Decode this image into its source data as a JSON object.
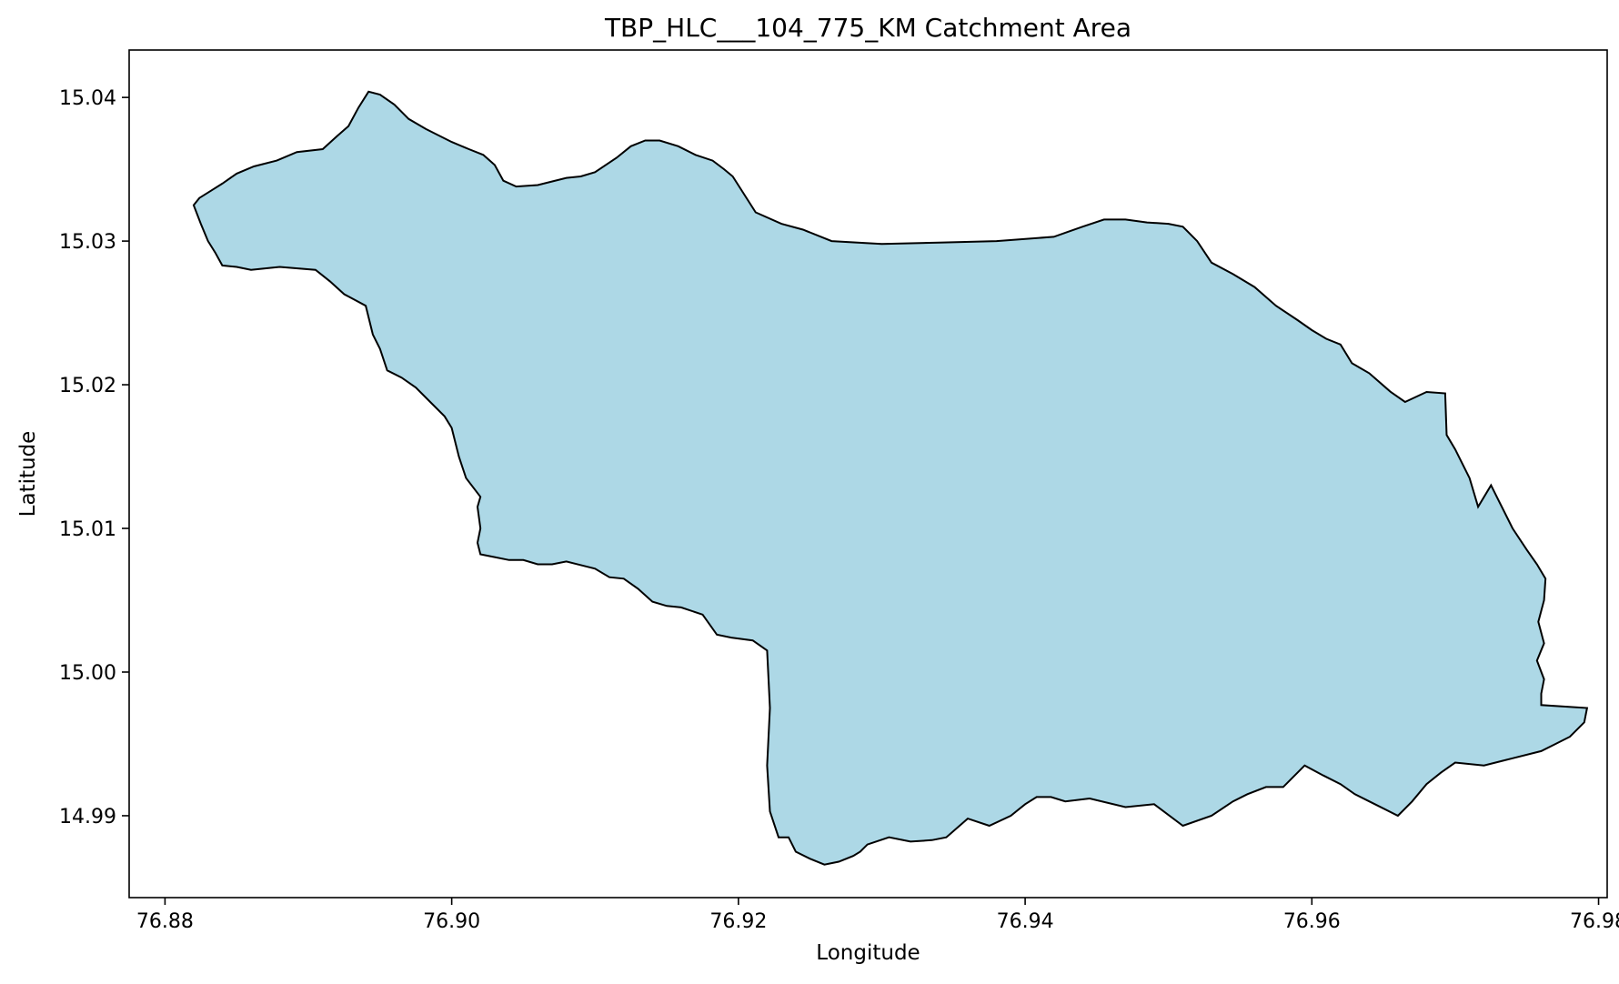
{
  "chart_data": {
    "type": "area",
    "title": "TBP_HLC___104_775_KM Catchment Area",
    "xlabel": "Longitude",
    "ylabel": "Latitude",
    "xlim": [
      76.8775,
      76.9806
    ],
    "ylim": [
      14.9843,
      15.0433
    ],
    "xticks": [
      76.88,
      76.9,
      76.92,
      76.94,
      76.96,
      76.98
    ],
    "xtick_labels": [
      "76.88",
      "76.90",
      "76.92",
      "76.94",
      "76.96",
      "76.98"
    ],
    "yticks": [
      14.99,
      15.0,
      15.01,
      15.02,
      15.03,
      15.04
    ],
    "ytick_labels": [
      "14.99",
      "15.00",
      "15.01",
      "15.02",
      "15.03",
      "15.04"
    ],
    "grid": false,
    "fill_color": "#add8e6",
    "edge_color": "#000000",
    "series": [
      {
        "x": [
          76.882,
          76.8824,
          76.8832,
          76.884,
          76.885,
          76.8862,
          76.8878,
          76.8892,
          76.891,
          76.892,
          76.8928,
          76.8935,
          76.8942,
          76.895,
          76.896,
          76.897,
          76.8982,
          76.9,
          76.9012,
          76.9022,
          76.903,
          76.9036,
          76.9045,
          76.906,
          76.908,
          76.909,
          76.91,
          76.9115,
          76.9125,
          76.9135,
          76.9145,
          76.9158,
          76.917,
          76.9182,
          76.919,
          76.9196,
          76.9212,
          76.923,
          76.9245,
          76.9265,
          76.93,
          76.934,
          76.938,
          76.942,
          76.944,
          76.9455,
          76.947,
          76.9485,
          76.95,
          76.951,
          76.952,
          76.953,
          76.9545,
          76.956,
          76.9575,
          76.959,
          76.96,
          76.961,
          76.962,
          76.9628,
          76.964,
          76.9655,
          76.9665,
          76.968,
          76.9693,
          76.9694,
          76.97,
          76.971,
          76.9716,
          76.9725,
          76.973,
          76.974,
          76.975,
          76.9757,
          76.9763,
          76.9762,
          76.9758,
          76.9762,
          76.9757,
          76.9762,
          76.976,
          76.976,
          76.9792,
          76.979,
          76.978,
          76.977,
          76.976,
          76.974,
          76.972,
          76.97,
          76.969,
          76.968,
          76.967,
          76.966,
          76.964,
          76.963,
          76.962,
          76.9608,
          76.9595,
          76.958,
          76.9568,
          76.9555,
          76.9545,
          76.953,
          76.951,
          76.949,
          76.947,
          76.9445,
          76.9428,
          76.9418,
          76.9408,
          76.94,
          76.939,
          76.9375,
          76.936,
          76.9345,
          76.9335,
          76.932,
          76.9305,
          76.929,
          76.9285,
          76.928,
          76.927,
          76.926,
          76.925,
          76.924,
          76.9235,
          76.9228,
          76.9222,
          76.922,
          76.9222,
          76.922,
          76.921,
          76.9195,
          76.9185,
          76.9175,
          76.916,
          76.915,
          76.914,
          76.913,
          76.912,
          76.911,
          76.91,
          76.908,
          76.907,
          76.906,
          76.905,
          76.904,
          76.903,
          76.902,
          76.9018,
          76.902,
          76.9018,
          76.902,
          76.901,
          76.9005,
          76.9,
          76.8995,
          76.8985,
          76.8975,
          76.8965,
          76.8955,
          76.895,
          76.8945,
          76.894,
          76.8925,
          76.8915,
          76.8905,
          76.888,
          76.887,
          76.886,
          76.885,
          76.884,
          76.8835,
          76.883,
          76.8825,
          76.882
        ],
        "y": [
          15.0325,
          15.033,
          15.0335,
          15.034,
          15.0347,
          15.0352,
          15.0356,
          15.0362,
          15.0364,
          15.0373,
          15.038,
          15.0393,
          15.0404,
          15.0402,
          15.0395,
          15.0385,
          15.0378,
          15.0369,
          15.0364,
          15.036,
          15.0353,
          15.0342,
          15.0338,
          15.0339,
          15.0344,
          15.0345,
          15.0348,
          15.0358,
          15.0366,
          15.037,
          15.037,
          15.0366,
          15.036,
          15.0356,
          15.035,
          15.0345,
          15.032,
          15.0312,
          15.0308,
          15.03,
          15.0298,
          15.0299,
          15.03,
          15.0303,
          15.031,
          15.0315,
          15.0315,
          15.0313,
          15.0312,
          15.031,
          15.03,
          15.0285,
          15.0277,
          15.0268,
          15.0255,
          15.0245,
          15.0238,
          15.0232,
          15.0228,
          15.0215,
          15.0208,
          15.0195,
          15.0188,
          15.0195,
          15.0194,
          15.0165,
          15.0155,
          15.0135,
          15.0115,
          15.013,
          15.012,
          15.01,
          15.0085,
          15.0075,
          15.0065,
          15.005,
          15.0035,
          15.002,
          15.0008,
          14.9995,
          14.9985,
          14.9977,
          14.9975,
          14.9965,
          14.9955,
          14.995,
          14.9945,
          14.994,
          14.9935,
          14.9937,
          14.993,
          14.9922,
          14.991,
          14.99,
          14.991,
          14.9915,
          14.9922,
          14.9928,
          14.9935,
          14.992,
          14.992,
          14.9915,
          14.991,
          14.99,
          14.9893,
          14.9908,
          14.9906,
          14.9912,
          14.991,
          14.9913,
          14.9913,
          14.9908,
          14.99,
          14.9893,
          14.9898,
          14.9885,
          14.9883,
          14.9882,
          14.9885,
          14.988,
          14.9875,
          14.9872,
          14.9868,
          14.9866,
          14.987,
          14.9875,
          14.9885,
          14.9885,
          14.9903,
          14.9935,
          14.9975,
          15.0015,
          15.0022,
          15.0024,
          15.0026,
          15.004,
          15.0045,
          15.0046,
          15.0049,
          15.0058,
          15.0065,
          15.0066,
          15.0072,
          15.0077,
          15.0075,
          15.0075,
          15.0078,
          15.0078,
          15.008,
          15.0082,
          15.009,
          15.01,
          15.0115,
          15.0122,
          15.0135,
          15.015,
          15.017,
          15.0178,
          15.0188,
          15.0198,
          15.0205,
          15.021,
          15.0225,
          15.0235,
          15.0255,
          15.0263,
          15.0272,
          15.028,
          15.0282,
          15.0281,
          15.028,
          15.0282,
          15.0283,
          15.0292,
          15.03,
          15.0312,
          15.0325
        ]
      }
    ]
  }
}
